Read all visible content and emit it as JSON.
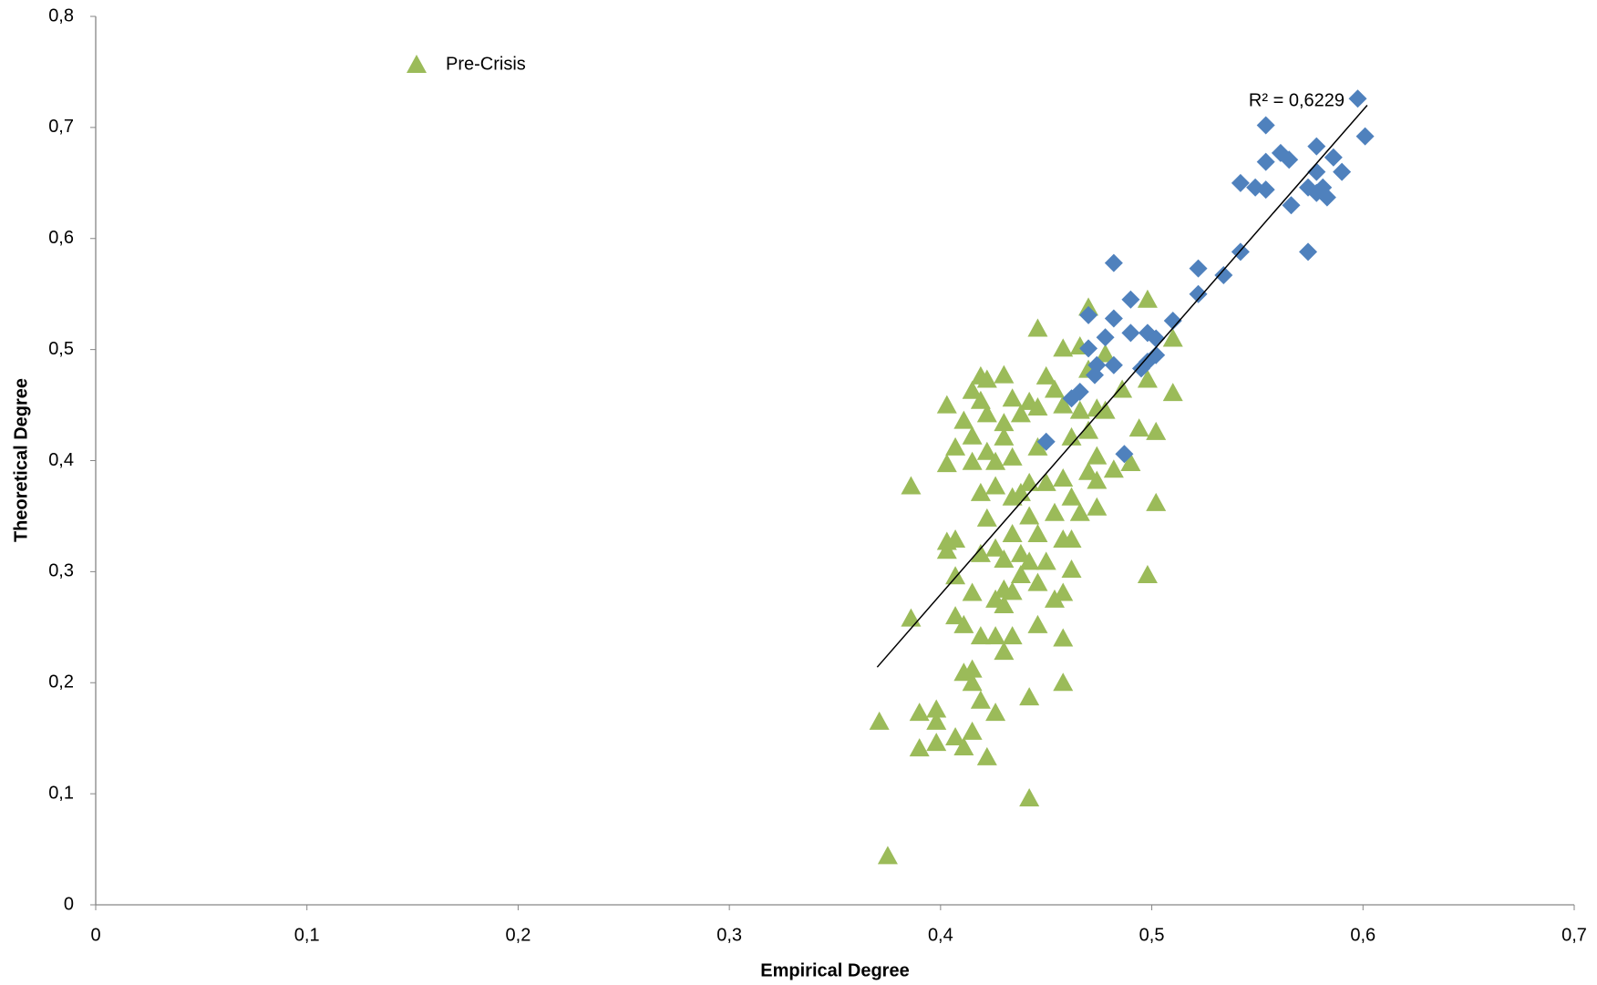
{
  "chart_data": {
    "type": "scatter",
    "x_label": "Empirical Degree",
    "y_label": "Theoretical Degree",
    "xlim": [
      0,
      0.7
    ],
    "ylim": [
      0,
      0.8
    ],
    "xticks": [
      0,
      {
        "value": 0.1,
        "label": "0,1"
      },
      {
        "value": 0.2,
        "label": "0,2"
      },
      {
        "value": 0.3,
        "label": "0,3"
      },
      {
        "value": 0.4,
        "label": "0,4"
      },
      {
        "value": 0.5,
        "label": "0,5"
      },
      {
        "value": 0.6,
        "label": "0,6"
      },
      {
        "value": 0.7,
        "label": "0,7"
      }
    ],
    "yticks": [
      0,
      {
        "value": 0.1,
        "label": "0,1"
      },
      {
        "value": 0.2,
        "label": "0,2"
      },
      {
        "value": 0.3,
        "label": "0,3"
      },
      {
        "value": 0.4,
        "label": "0,4"
      },
      {
        "value": 0.5,
        "label": "0,5"
      },
      {
        "value": 0.6,
        "label": "0,6"
      },
      {
        "value": 0.7,
        "label": "0,7"
      },
      {
        "value": 0.8,
        "label": "0,8"
      }
    ],
    "grid": false,
    "legend": "top-left",
    "annotation": "R² = 0,6229",
    "trendline": {
      "x": [
        0.37,
        0.602
      ],
      "y": [
        0.214,
        0.72
      ],
      "color": "#000000"
    },
    "series": [
      {
        "name": "Pre-Crisis",
        "color": "#9bbb59",
        "marker": "triangle",
        "x": [
          0.371,
          0.375,
          0.386,
          0.386,
          0.39,
          0.39,
          0.398,
          0.398,
          0.398,
          0.403,
          0.403,
          0.403,
          0.403,
          0.407,
          0.407,
          0.407,
          0.407,
          0.407,
          0.411,
          0.411,
          0.411,
          0.411,
          0.415,
          0.415,
          0.415,
          0.415,
          0.415,
          0.415,
          0.415,
          0.419,
          0.419,
          0.419,
          0.419,
          0.419,
          0.419,
          0.422,
          0.422,
          0.422,
          0.422,
          0.422,
          0.426,
          0.426,
          0.426,
          0.426,
          0.426,
          0.426,
          0.43,
          0.43,
          0.43,
          0.43,
          0.43,
          0.43,
          0.43,
          0.434,
          0.434,
          0.434,
          0.434,
          0.434,
          0.434,
          0.438,
          0.438,
          0.438,
          0.438,
          0.442,
          0.442,
          0.442,
          0.442,
          0.442,
          0.442,
          0.446,
          0.446,
          0.446,
          0.446,
          0.446,
          0.446,
          0.45,
          0.45,
          0.45,
          0.454,
          0.454,
          0.454,
          0.458,
          0.458,
          0.458,
          0.458,
          0.458,
          0.458,
          0.458,
          0.462,
          0.462,
          0.462,
          0.462,
          0.466,
          0.466,
          0.466,
          0.47,
          0.47,
          0.47,
          0.47,
          0.474,
          0.474,
          0.474,
          0.474,
          0.478,
          0.478,
          0.482,
          0.486,
          0.49,
          0.494,
          0.498,
          0.498,
          0.498,
          0.502,
          0.502,
          0.51,
          0.51
        ],
        "values": [
          0.165,
          0.044,
          0.377,
          0.258,
          0.173,
          0.141,
          0.176,
          0.165,
          0.146,
          0.45,
          0.397,
          0.327,
          0.319,
          0.412,
          0.329,
          0.296,
          0.26,
          0.151,
          0.436,
          0.252,
          0.209,
          0.142,
          0.463,
          0.422,
          0.399,
          0.281,
          0.212,
          0.2,
          0.156,
          0.476,
          0.454,
          0.371,
          0.316,
          0.242,
          0.184,
          0.473,
          0.442,
          0.408,
          0.348,
          0.133,
          0.399,
          0.377,
          0.321,
          0.275,
          0.242,
          0.173,
          0.477,
          0.434,
          0.421,
          0.311,
          0.284,
          0.27,
          0.228,
          0.456,
          0.403,
          0.367,
          0.334,
          0.282,
          0.242,
          0.442,
          0.371,
          0.316,
          0.297,
          0.453,
          0.38,
          0.35,
          0.309,
          0.187,
          0.096,
          0.519,
          0.448,
          0.412,
          0.334,
          0.29,
          0.252,
          0.476,
          0.38,
          0.309,
          0.464,
          0.353,
          0.275,
          0.501,
          0.45,
          0.384,
          0.329,
          0.281,
          0.24,
          0.2,
          0.421,
          0.367,
          0.329,
          0.302,
          0.503,
          0.445,
          0.353,
          0.538,
          0.482,
          0.427,
          0.39,
          0.447,
          0.404,
          0.382,
          0.358,
          0.496,
          0.445,
          0.392,
          0.464,
          0.398,
          0.429,
          0.545,
          0.473,
          0.297,
          0.426,
          0.362,
          0.461,
          0.51
        ]
      },
      {
        "color": "#4f81bd",
        "marker": "diamond",
        "x": [
          0.5975,
          0.601,
          0.554,
          0.561,
          0.565,
          0.554,
          0.578,
          0.586,
          0.59,
          0.578,
          0.542,
          0.549,
          0.554,
          0.574,
          0.578,
          0.581,
          0.583,
          0.566,
          0.542,
          0.574,
          0.534,
          0.522,
          0.522,
          0.482,
          0.51,
          0.49,
          0.482,
          0.47,
          0.478,
          0.49,
          0.498,
          0.502,
          0.47,
          0.502,
          0.474,
          0.482,
          0.495,
          0.498,
          0.473,
          0.466,
          0.462,
          0.45,
          0.487
        ],
        "values": [
          0.726,
          0.692,
          0.702,
          0.677,
          0.671,
          0.669,
          0.683,
          0.673,
          0.66,
          0.66,
          0.65,
          0.646,
          0.644,
          0.646,
          0.641,
          0.646,
          0.637,
          0.63,
          0.588,
          0.588,
          0.567,
          0.573,
          0.55,
          0.578,
          0.526,
          0.545,
          0.528,
          0.531,
          0.511,
          0.515,
          0.515,
          0.51,
          0.501,
          0.495,
          0.486,
          0.486,
          0.483,
          0.489,
          0.477,
          0.462,
          0.456,
          0.417,
          0.406
        ]
      }
    ]
  }
}
